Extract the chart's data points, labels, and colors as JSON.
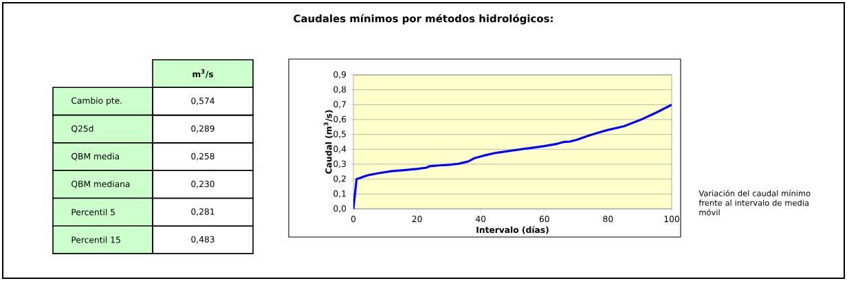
{
  "chart_data": [
    {
      "type": "other",
      "ylabel": "m$^{3}$/s",
      "categories": [
        "Cambio pte.",
        "Q25d",
        "QBM media",
        "QBM mediana",
        "Percentil 5",
        "Percentil 15"
      ],
      "value_labels": [
        "0,574",
        "0,289",
        "0,258",
        "0,230",
        "0,281",
        "0,483"
      ]
    },
    {
      "type": "line",
      "title": "Caudales mínimos por métodos hidrológicos:",
      "xlabel": "Intervalo (días)",
      "ylabel": "Caudal (m$^{3}$/s)",
      "annotations": [
        "Variación del caudal mínimo frente al intervalo de media móvil"
      ],
      "x": [
        0,
        1,
        3,
        5,
        8,
        12,
        16,
        20,
        23,
        24,
        27,
        30,
        33,
        36,
        38,
        41,
        45,
        50,
        55,
        60,
        64,
        66,
        68,
        70,
        74,
        77,
        80,
        85,
        90,
        95,
        100
      ],
      "series": [
        {
          "color": "#0000ff",
          "values": [
            0,
            0.2,
            0.215,
            0.228,
            0.24,
            0.253,
            0.26,
            0.268,
            0.277,
            0.287,
            0.292,
            0.296,
            0.303,
            0.318,
            0.34,
            0.358,
            0.377,
            0.392,
            0.407,
            0.422,
            0.437,
            0.449,
            0.452,
            0.463,
            0.493,
            0.512,
            0.53,
            0.555,
            0.596,
            0.645,
            0.7
          ]
        }
      ],
      "xlim": [
        0,
        100
      ],
      "ylim": [
        0,
        0.9
      ],
      "xticks": [
        0,
        20,
        40,
        60,
        80,
        100
      ],
      "yticks": [
        {
          "value": 0,
          "label": "0,0"
        },
        {
          "value": 0.1,
          "label": "0,1"
        },
        {
          "value": 0.2,
          "label": "0,2"
        },
        {
          "value": 0.3,
          "label": "0,3"
        },
        {
          "value": 0.4,
          "label": "0,4"
        },
        {
          "value": 0.5,
          "label": "0,5"
        },
        {
          "value": 0.6,
          "label": "0,6"
        },
        {
          "value": 0.7,
          "label": "0,7"
        },
        {
          "value": 0.8,
          "label": "0,8"
        },
        {
          "value": 0.9,
          "label": "0,9"
        }
      ],
      "grid": "y",
      "line_style": "solid",
      "marker": "none"
    }
  ]
}
